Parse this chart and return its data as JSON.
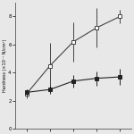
{
  "x_days": [
    1,
    3,
    5,
    7,
    9
  ],
  "silky_y": [
    2.6,
    2.8,
    3.4,
    3.6,
    3.7
  ],
  "silky_err": [
    0.2,
    0.3,
    0.45,
    0.5,
    0.55
  ],
  "hen_y": [
    2.5,
    4.5,
    6.2,
    7.2,
    8.0
  ],
  "hen_err": [
    0.3,
    1.6,
    1.4,
    1.4,
    0.5
  ],
  "ylabel": "Hardness (×10⁻¹ N/cm²)",
  "ylim": [
    0,
    9
  ],
  "xlim": [
    0,
    10
  ],
  "yticks": [
    0,
    2,
    4,
    6,
    8
  ],
  "xticks": [
    1,
    3,
    5,
    7,
    9
  ],
  "xticklabels": [
    "",
    "",
    "",
    "",
    ""
  ],
  "silky_color": "#222222",
  "hen_color": "#444444",
  "bg_color": "#e8e8e8",
  "plot_bg": "#e8e8e8",
  "linewidth": 0.8,
  "markersize": 3.5,
  "elinewidth": 0.7,
  "ylabel_fontsize": 3.5,
  "tick_labelsize": 4.0
}
